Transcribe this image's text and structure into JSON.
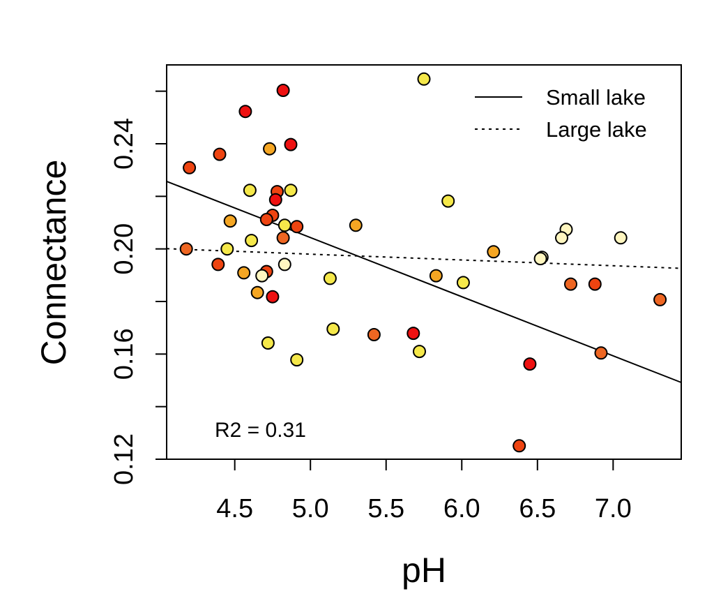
{
  "chart_data": {
    "type": "scatter",
    "xlabel": "pH",
    "ylabel": "Connectance",
    "xlim": [
      4.05,
      7.45
    ],
    "ylim": [
      0.12,
      0.27
    ],
    "x_ticks": [
      4.5,
      5.0,
      5.5,
      6.0,
      6.5,
      7.0
    ],
    "x_tick_labels": [
      "4.5",
      "5.0",
      "5.5",
      "6.0",
      "6.5",
      "7.0"
    ],
    "y_ticks": [
      0.12,
      0.14,
      0.16,
      0.18,
      0.2,
      0.22,
      0.24,
      0.26
    ],
    "y_tick_labels": [
      "0.12",
      "",
      "0.16",
      "",
      "0.20",
      "",
      "0.24",
      ""
    ],
    "legend_position": "top-right",
    "legend": [
      {
        "label": "Small lake",
        "line_style": "solid"
      },
      {
        "label": "Large lake",
        "line_style": "dotted"
      }
    ],
    "annotation": "R2 = 0.31",
    "point_palette": {
      "red": "#ee1111",
      "red_orange": "#ee4411",
      "orange": "#ee6622",
      "amber": "#f5a623",
      "yellow": "#f5e84a",
      "pale_yellow": "#fff6c0"
    },
    "lines": [
      {
        "name": "Small lake",
        "style": "solid",
        "x": [
          4.05,
          7.45
        ],
        "y": [
          0.2257,
          0.1492
        ]
      },
      {
        "name": "Large lake",
        "style": "dotted",
        "x": [
          4.05,
          7.45
        ],
        "y": [
          0.2001,
          0.1926
        ]
      }
    ],
    "points": [
      {
        "x": 5.75,
        "y": 0.2646,
        "color": "yellow"
      },
      {
        "x": 4.82,
        "y": 0.2603,
        "color": "red"
      },
      {
        "x": 4.57,
        "y": 0.2523,
        "color": "red"
      },
      {
        "x": 4.87,
        "y": 0.2397,
        "color": "red"
      },
      {
        "x": 4.4,
        "y": 0.236,
        "color": "red_orange"
      },
      {
        "x": 4.73,
        "y": 0.2381,
        "color": "amber"
      },
      {
        "x": 4.2,
        "y": 0.2309,
        "color": "red_orange"
      },
      {
        "x": 4.6,
        "y": 0.2223,
        "color": "yellow"
      },
      {
        "x": 4.87,
        "y": 0.2223,
        "color": "yellow"
      },
      {
        "x": 4.78,
        "y": 0.2218,
        "color": "red_orange"
      },
      {
        "x": 4.77,
        "y": 0.2187,
        "color": "red"
      },
      {
        "x": 5.91,
        "y": 0.2182,
        "color": "yellow"
      },
      {
        "x": 4.75,
        "y": 0.2128,
        "color": "red_orange"
      },
      {
        "x": 4.71,
        "y": 0.2112,
        "color": "red_orange"
      },
      {
        "x": 4.47,
        "y": 0.2106,
        "color": "amber"
      },
      {
        "x": 4.83,
        "y": 0.209,
        "color": "yellow"
      },
      {
        "x": 4.91,
        "y": 0.2085,
        "color": "red_orange"
      },
      {
        "x": 5.3,
        "y": 0.209,
        "color": "amber"
      },
      {
        "x": 6.69,
        "y": 0.2074,
        "color": "pale_yellow"
      },
      {
        "x": 4.82,
        "y": 0.2042,
        "color": "orange"
      },
      {
        "x": 4.61,
        "y": 0.2032,
        "color": "yellow"
      },
      {
        "x": 6.66,
        "y": 0.2042,
        "color": "pale_yellow"
      },
      {
        "x": 7.05,
        "y": 0.2042,
        "color": "pale_yellow"
      },
      {
        "x": 4.18,
        "y": 0.2,
        "color": "orange"
      },
      {
        "x": 4.45,
        "y": 0.2,
        "color": "yellow"
      },
      {
        "x": 6.21,
        "y": 0.1989,
        "color": "amber"
      },
      {
        "x": 6.53,
        "y": 0.1968,
        "color": "pale_yellow"
      },
      {
        "x": 6.52,
        "y": 0.1963,
        "color": "pale_yellow"
      },
      {
        "x": 4.39,
        "y": 0.1941,
        "color": "red_orange"
      },
      {
        "x": 4.83,
        "y": 0.1941,
        "color": "pale_yellow"
      },
      {
        "x": 4.71,
        "y": 0.1914,
        "color": "red_orange"
      },
      {
        "x": 4.56,
        "y": 0.1909,
        "color": "amber"
      },
      {
        "x": 4.68,
        "y": 0.1898,
        "color": "pale_yellow"
      },
      {
        "x": 5.83,
        "y": 0.1898,
        "color": "amber"
      },
      {
        "x": 5.13,
        "y": 0.1888,
        "color": "yellow"
      },
      {
        "x": 6.01,
        "y": 0.1872,
        "color": "yellow"
      },
      {
        "x": 6.72,
        "y": 0.1866,
        "color": "orange"
      },
      {
        "x": 6.88,
        "y": 0.1866,
        "color": "red_orange"
      },
      {
        "x": 4.65,
        "y": 0.1834,
        "color": "amber"
      },
      {
        "x": 4.75,
        "y": 0.1818,
        "color": "red"
      },
      {
        "x": 7.31,
        "y": 0.1807,
        "color": "orange"
      },
      {
        "x": 5.15,
        "y": 0.1695,
        "color": "yellow"
      },
      {
        "x": 5.68,
        "y": 0.1679,
        "color": "red"
      },
      {
        "x": 5.42,
        "y": 0.1674,
        "color": "orange"
      },
      {
        "x": 4.72,
        "y": 0.1642,
        "color": "yellow"
      },
      {
        "x": 5.72,
        "y": 0.161,
        "color": "yellow"
      },
      {
        "x": 6.92,
        "y": 0.1604,
        "color": "orange"
      },
      {
        "x": 4.91,
        "y": 0.1578,
        "color": "yellow"
      },
      {
        "x": 6.45,
        "y": 0.1562,
        "color": "red"
      },
      {
        "x": 6.38,
        "y": 0.1251,
        "color": "red_orange"
      }
    ]
  }
}
